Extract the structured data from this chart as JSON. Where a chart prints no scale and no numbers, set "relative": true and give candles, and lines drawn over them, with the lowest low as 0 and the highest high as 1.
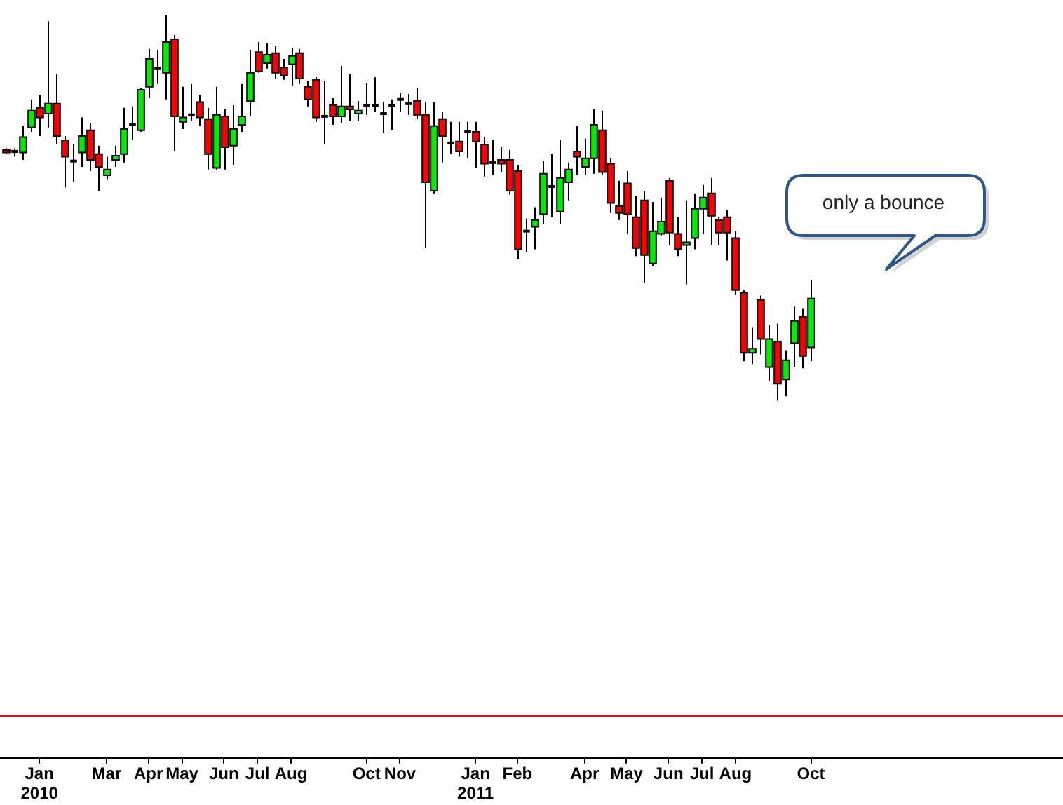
{
  "chart_data": {
    "type": "candlestick",
    "relative": true,
    "categories": [
      null,
      null,
      null,
      null,
      "Jan\n2010",
      null,
      null,
      null,
      null,
      null,
      null,
      null,
      "Mar",
      null,
      null,
      null,
      null,
      "Apr",
      null,
      null,
      null,
      "May",
      null,
      null,
      null,
      null,
      "Jun",
      null,
      null,
      null,
      "Jul",
      null,
      null,
      null,
      "Aug",
      null,
      null,
      null,
      null,
      null,
      null,
      null,
      null,
      "Oct",
      null,
      null,
      null,
      "Nov",
      null,
      null,
      null,
      null,
      null,
      null,
      null,
      null,
      "Jan\n2011",
      null,
      null,
      null,
      null,
      "Feb",
      null,
      null,
      null,
      null,
      null,
      null,
      null,
      "Apr",
      null,
      null,
      null,
      null,
      "May",
      null,
      null,
      null,
      null,
      "Jun",
      null,
      null,
      null,
      "Jul",
      null,
      null,
      null,
      "Aug",
      null,
      null,
      null,
      null,
      null,
      null,
      null,
      null,
      "Oct"
    ],
    "ohlc": [
      [
        0.651,
        0.655,
        0.64,
        0.644
      ],
      [
        0.647,
        0.655,
        0.633,
        0.647
      ],
      [
        0.644,
        0.713,
        0.625,
        0.684
      ],
      [
        0.709,
        0.782,
        0.698,
        0.753
      ],
      [
        0.76,
        0.793,
        0.687,
        0.735
      ],
      [
        0.745,
        0.985,
        0.709,
        0.771
      ],
      [
        0.771,
        0.847,
        0.665,
        0.687
      ],
      [
        0.676,
        0.687,
        0.553,
        0.633
      ],
      [
        0.622,
        0.665,
        0.567,
        0.622
      ],
      [
        0.644,
        0.735,
        0.607,
        0.687
      ],
      [
        0.702,
        0.72,
        0.596,
        0.625
      ],
      [
        0.64,
        0.662,
        0.545,
        0.607
      ],
      [
        0.585,
        0.633,
        0.575,
        0.6
      ],
      [
        0.625,
        0.662,
        0.607,
        0.636
      ],
      [
        0.64,
        0.76,
        0.618,
        0.705
      ],
      [
        0.716,
        0.764,
        0.676,
        0.716
      ],
      [
        0.702,
        0.811,
        0.698,
        0.807
      ],
      [
        0.815,
        0.913,
        0.785,
        0.887
      ],
      [
        0.862,
        0.909,
        0.822,
        0.862
      ],
      [
        0.851,
        1,
        0.782,
        0.931
      ],
      [
        0.938,
        0.949,
        0.647,
        0.738
      ],
      [
        0.724,
        0.815,
        0.705,
        0.735
      ],
      [
        0.742,
        0.822,
        0.727,
        0.742
      ],
      [
        0.775,
        0.793,
        0.713,
        0.735
      ],
      [
        0.731,
        0.76,
        0.6,
        0.64
      ],
      [
        0.604,
        0.815,
        0.6,
        0.742
      ],
      [
        0.738,
        0.756,
        0.6,
        0.658
      ],
      [
        0.662,
        0.767,
        0.611,
        0.705
      ],
      [
        0.716,
        0.822,
        0.698,
        0.738
      ],
      [
        0.778,
        0.909,
        0.738,
        0.851
      ],
      [
        0.905,
        0.931,
        0.851,
        0.855
      ],
      [
        0.876,
        0.927,
        0.862,
        0.898
      ],
      [
        0.902,
        0.92,
        0.836,
        0.851
      ],
      [
        0.865,
        0.887,
        0.833,
        0.844
      ],
      [
        0.873,
        0.916,
        0.818,
        0.895
      ],
      [
        0.902,
        0.913,
        0.822,
        0.836
      ],
      [
        0.815,
        0.829,
        0.764,
        0.782
      ],
      [
        0.833,
        0.84,
        0.724,
        0.735
      ],
      [
        0.738,
        0.829,
        0.665,
        0.738
      ],
      [
        0.767,
        0.785,
        0.716,
        0.738
      ],
      [
        0.738,
        0.869,
        0.72,
        0.764
      ],
      [
        0.764,
        0.847,
        0.727,
        0.756
      ],
      [
        0.745,
        0.778,
        0.727,
        0.753
      ],
      [
        0.767,
        0.825,
        0.742,
        0.767
      ],
      [
        0.767,
        0.84,
        0.749,
        0.767
      ],
      [
        0.745,
        0.775,
        0.695,
        0.745
      ],
      [
        0.767,
        0.782,
        0.702,
        0.767
      ],
      [
        0.782,
        0.8,
        0.749,
        0.782
      ],
      [
        0.771,
        0.796,
        0.742,
        0.771
      ],
      [
        0.778,
        0.811,
        0.731,
        0.742
      ],
      [
        0.742,
        0.775,
        0.396,
        0.567
      ],
      [
        0.545,
        0.775,
        0.538,
        0.713
      ],
      [
        0.731,
        0.749,
        0.618,
        0.687
      ],
      [
        0.669,
        0.724,
        0.64,
        0.669
      ],
      [
        0.673,
        0.724,
        0.633,
        0.647
      ],
      [
        0.698,
        0.724,
        0.629,
        0.698
      ],
      [
        0.698,
        0.724,
        0.604,
        0.673
      ],
      [
        0.665,
        0.684,
        0.582,
        0.615
      ],
      [
        0.618,
        0.676,
        0.585,
        0.618
      ],
      [
        0.625,
        0.658,
        0.593,
        0.615
      ],
      [
        0.625,
        0.651,
        0.535,
        0.545
      ],
      [
        0.596,
        0.611,
        0.367,
        0.393
      ],
      [
        0.44,
        0.473,
        0.385,
        0.44
      ],
      [
        0.451,
        0.502,
        0.393,
        0.469
      ],
      [
        0.484,
        0.622,
        0.458,
        0.589
      ],
      [
        0.556,
        0.64,
        0.476,
        0.556
      ],
      [
        0.491,
        0.676,
        0.458,
        0.578
      ],
      [
        0.567,
        0.618,
        0.52,
        0.6
      ],
      [
        0.647,
        0.713,
        0.585,
        0.633
      ],
      [
        0.607,
        0.68,
        0.585,
        0.629
      ],
      [
        0.629,
        0.756,
        0.589,
        0.716
      ],
      [
        0.702,
        0.753,
        0.585,
        0.593
      ],
      [
        0.615,
        0.629,
        0.487,
        0.513
      ],
      [
        0.505,
        0.571,
        0.469,
        0.487
      ],
      [
        0.564,
        0.596,
        0.433,
        0.484
      ],
      [
        0.476,
        0.531,
        0.375,
        0.396
      ],
      [
        0.52,
        0.545,
        0.305,
        0.378
      ],
      [
        0.356,
        0.516,
        0.349,
        0.44
      ],
      [
        0.433,
        0.527,
        0.429,
        0.465
      ],
      [
        0.571,
        0.578,
        0.404,
        0.436
      ],
      [
        0.433,
        0.476,
        0.375,
        0.393
      ],
      [
        0.404,
        0.52,
        0.302,
        0.411
      ],
      [
        0.422,
        0.538,
        0.393,
        0.498
      ],
      [
        0.498,
        0.56,
        0.433,
        0.527
      ],
      [
        0.538,
        0.578,
        0.404,
        0.48
      ],
      [
        0.469,
        0.476,
        0.404,
        0.436
      ],
      [
        0.476,
        0.495,
        0.364,
        0.436
      ],
      [
        0.422,
        0.44,
        0.276,
        0.287
      ],
      [
        0.28,
        0.287,
        0.102,
        0.124
      ],
      [
        0.124,
        0.189,
        0.095,
        0.135
      ],
      [
        0.262,
        0.273,
        0.12,
        0.16
      ],
      [
        0.087,
        0.196,
        0.051,
        0.16
      ],
      [
        0.153,
        0.2,
        0,
        0.044
      ],
      [
        0.055,
        0.131,
        0.011,
        0.105
      ],
      [
        0.149,
        0.244,
        0.087,
        0.207
      ],
      [
        0.218,
        0.24,
        0.084,
        0.116
      ],
      [
        0.138,
        0.313,
        0.102,
        0.265
      ]
    ],
    "colors": [
      "#ff0000",
      "#000000",
      "#00ee00",
      "#00ee00",
      "#ff0000",
      "#00ee00",
      "#ff0000",
      "#ff0000",
      "#000000",
      "#00ee00",
      "#ff0000",
      "#ff0000",
      "#00ee00",
      "#00ee00",
      "#00ee00",
      "#000000",
      "#00ee00",
      "#00ee00",
      "#000000",
      "#00ee00",
      "#ff0000",
      "#00ee00",
      "#000000",
      "#ff0000",
      "#ff0000",
      "#00ee00",
      "#ff0000",
      "#00ee00",
      "#00ee00",
      "#00ee00",
      "#ff0000",
      "#00ee00",
      "#ff0000",
      "#ff0000",
      "#00ee00",
      "#ff0000",
      "#ff0000",
      "#ff0000",
      "#000000",
      "#ff0000",
      "#00ee00",
      "#ff0000",
      "#00ee00",
      "#000000",
      "#000000",
      "#000000",
      "#000000",
      "#000000",
      "#000000",
      "#ff0000",
      "#ff0000",
      "#00ee00",
      "#ff0000",
      "#000000",
      "#ff0000",
      "#000000",
      "#ff0000",
      "#ff0000",
      "#000000",
      "#ff0000",
      "#ff0000",
      "#ff0000",
      "#000000",
      "#00ee00",
      "#00ee00",
      "#000000",
      "#00ee00",
      "#00ee00",
      "#ff0000",
      "#00ee00",
      "#00ee00",
      "#ff0000",
      "#ff0000",
      "#ff0000",
      "#ff0000",
      "#ff0000",
      "#ff0000",
      "#00ee00",
      "#00ee00",
      "#ff0000",
      "#ff0000",
      "#00ee00",
      "#00ee00",
      "#00ee00",
      "#ff0000",
      "#ff0000",
      "#ff0000",
      "#ff0000",
      "#ff0000",
      "#00ee00",
      "#ff0000",
      "#00ee00",
      "#ff0000",
      "#00ee00",
      "#00ee00",
      "#ff0000",
      "#00ee00"
    ],
    "annotations": [
      "only a bounce"
    ]
  }
}
